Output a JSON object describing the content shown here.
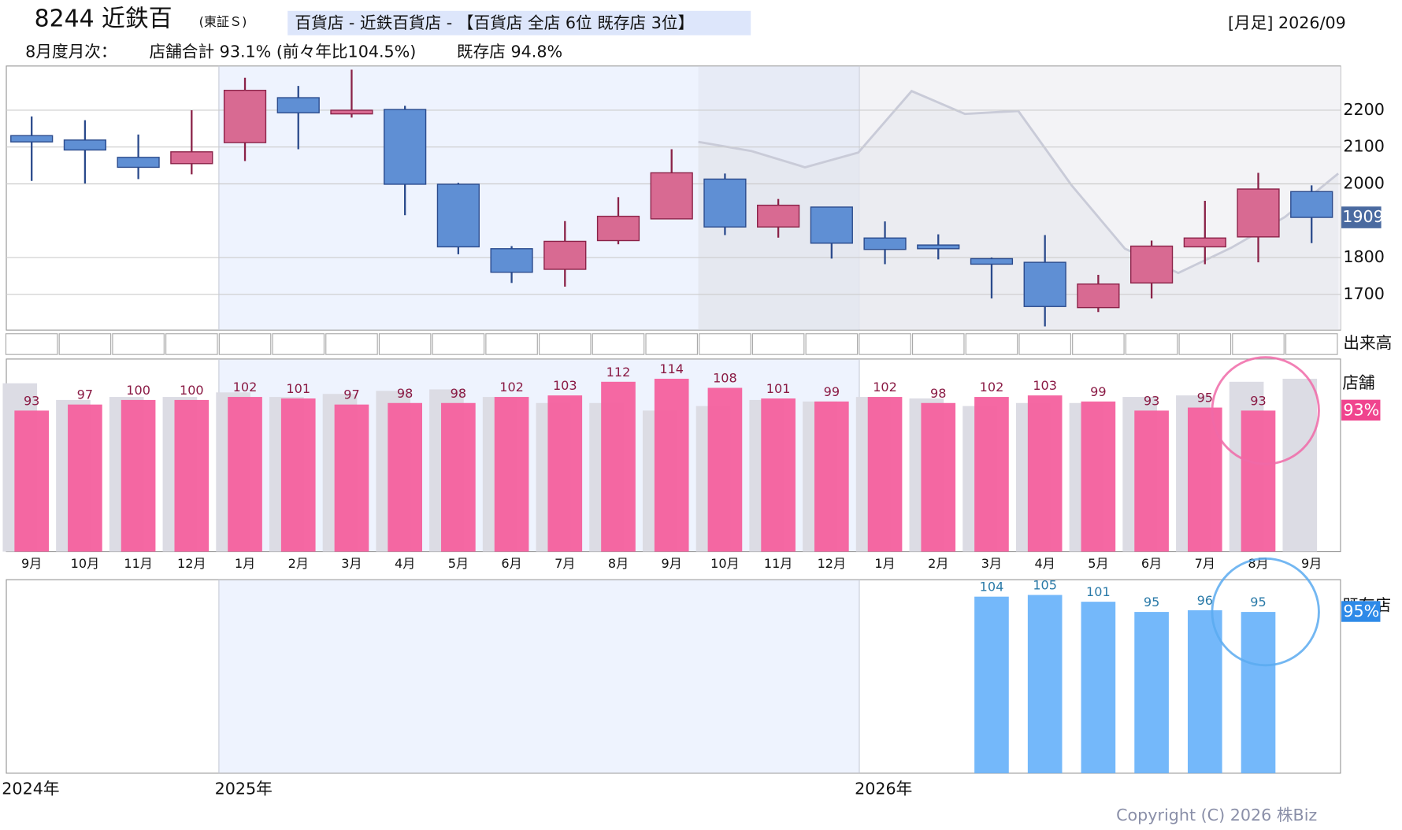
{
  "header": {
    "code_name": "8244 近鉄百",
    "market": "(東証Ｓ)",
    "sector": "百貨店 - 近鉄百貨店 - 【百貨店 全店 6位 既存店 3位】",
    "period": "[月足] 2026/09",
    "monthly_label": "8月度月次：",
    "total": "店舗合計 93.1% (前々年比104.5%)",
    "existing": "既存店 94.8%"
  },
  "years": [
    "2024年",
    "2025年",
    "2026年"
  ],
  "copyright": "Copyright (C) 2026 株Biz",
  "volume_label": "出来高",
  "chart_data": [
    {
      "type": "candlestick",
      "open": [
        2131,
        2119,
        2072,
        2055,
        2112,
        2234,
        2190,
        2202,
        1999,
        1824,
        1768,
        1846,
        1905,
        2013,
        1883,
        1937,
        1853,
        1834,
        1797,
        1787,
        1664,
        1731,
        1829,
        1856,
        1979
      ],
      "high": [
        2183,
        2173,
        2134,
        2200,
        2288,
        2266,
        2310,
        2212,
        2003,
        1831,
        1899,
        1964,
        2094,
        2028,
        1959,
        1937,
        1898,
        1863,
        1800,
        1861,
        1753,
        1846,
        1954,
        2030,
        1996
      ],
      "low": [
        2008,
        2001,
        2013,
        2026,
        2062,
        2094,
        2180,
        1915,
        1809,
        1731,
        1721,
        1836,
        1905,
        1861,
        1854,
        1797,
        1782,
        1795,
        1689,
        1613,
        1652,
        1689,
        1782,
        1787,
        1839
      ],
      "close": [
        2114,
        2092,
        2045,
        2087,
        2254,
        2193,
        2200,
        1999,
        1829,
        1760,
        1844,
        1912,
        2030,
        1883,
        1942,
        1839,
        1822,
        1824,
        1782,
        1667,
        1728,
        1831,
        1853,
        1986,
        1909
      ],
      "up_color": "#d86a92",
      "down_color": "#5f8fd4",
      "shadow_values": [
        2114,
        2089,
        2045,
        2085,
        2252,
        2190,
        2198,
        1996,
        1824,
        1758,
        1827,
        1910,
        2028
      ],
      "shadow_color": "#c9cbd8",
      "ylim": [
        1603,
        2320
      ],
      "yticks": [
        1700,
        1800,
        2000,
        2100,
        2200
      ],
      "grid": true
    },
    {
      "type": "bar",
      "label": "店舗",
      "badge": "93%",
      "categories": [
        "9月",
        "10月",
        "11月",
        "12月",
        "1月",
        "2月",
        "3月",
        "4月",
        "5月",
        "6月",
        "7月",
        "8月",
        "9月",
        "10月",
        "11月",
        "12月",
        "1月",
        "2月",
        "3月",
        "4月",
        "5月",
        "6月",
        "7月",
        "8月",
        "9月"
      ],
      "series": [
        {
          "color": "#dcdce4",
          "values": [
            111,
            100,
            102,
            102,
            105,
            102,
            104,
            106,
            107,
            102,
            98,
            98,
            93,
            96,
            100,
            99,
            102,
            101,
            96,
            98,
            98,
            102,
            103,
            112,
            114
          ]
        },
        {
          "color": "#f4609e",
          "values": [
            93,
            97,
            100,
            100,
            102,
            101,
            97,
            98,
            98,
            102,
            103,
            112,
            114,
            108,
            101,
            99,
            102,
            98,
            102,
            103,
            99,
            93,
            95,
            93,
            null
          ]
        }
      ],
      "ylim": [
        0,
        127
      ]
    },
    {
      "type": "bar",
      "label": "既存店",
      "badge": "95%",
      "color": "#6db4fa",
      "values": [
        null,
        null,
        null,
        null,
        null,
        null,
        null,
        null,
        null,
        null,
        null,
        null,
        null,
        null,
        null,
        null,
        null,
        null,
        104,
        105,
        101,
        95,
        96,
        95,
        null
      ],
      "ylim": [
        0,
        114
      ]
    }
  ]
}
